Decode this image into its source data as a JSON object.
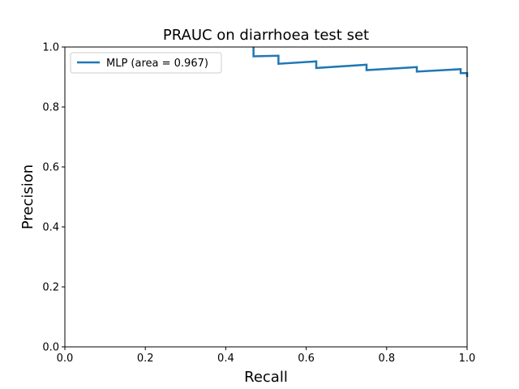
{
  "chart_data": {
    "type": "line",
    "title": "PRAUC on diarrhoea test set",
    "xlabel": "Recall",
    "ylabel": "Precision",
    "xlim": [
      0.0,
      1.0
    ],
    "ylim": [
      0.0,
      1.0
    ],
    "xticks": [
      "0.0",
      "0.2",
      "0.4",
      "0.6",
      "0.8",
      "1.0"
    ],
    "yticks": [
      "0.0",
      "0.2",
      "0.4",
      "0.6",
      "0.8",
      "1.0"
    ],
    "grid": false,
    "legend_position": "upper-left",
    "series": [
      {
        "name": "MLP (area = 0.967)",
        "color": "#1f77b4",
        "x": [
          0.469,
          0.469,
          0.531,
          0.531,
          0.625,
          0.625,
          0.75,
          0.75,
          0.875,
          0.875,
          0.984,
          0.984,
          1.0,
          1.0
        ],
        "y": [
          1.0,
          0.969,
          0.971,
          0.944,
          0.952,
          0.93,
          0.941,
          0.923,
          0.933,
          0.918,
          0.926,
          0.913,
          0.913,
          0.9
        ]
      }
    ]
  }
}
